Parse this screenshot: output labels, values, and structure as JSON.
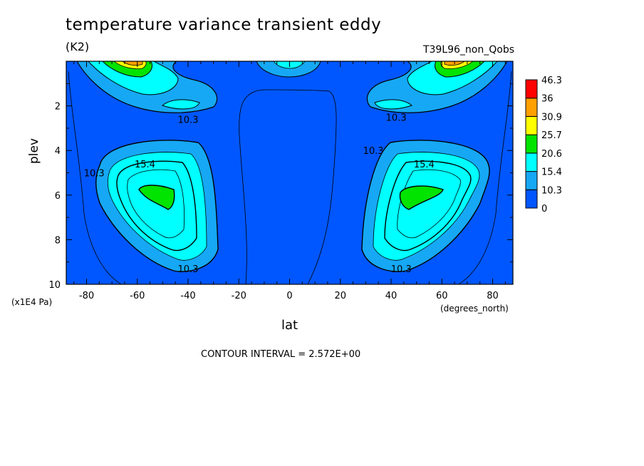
{
  "header": {
    "title": "temperature variance transient eddy",
    "units": "(K2)",
    "experiment": "T39L96_non_Qobs"
  },
  "footer": {
    "contour_interval": "CONTOUR INTERVAL = 2.572E+00"
  },
  "chart_data": {
    "type": "heatmap",
    "title": "temperature variance transient eddy",
    "xlabel": "lat",
    "x_units": "(degrees_north)",
    "ylabel": "plev",
    "y_units": "(x1E4 Pa)",
    "xlim": [
      -88,
      88
    ],
    "ylim": [
      10,
      0
    ],
    "x_ticks": [
      -80,
      -60,
      -40,
      -20,
      0,
      20,
      40,
      60,
      80
    ],
    "x_tick_labels": [
      "-80",
      "-60",
      "-40",
      "-20",
      "0",
      "20",
      "40",
      "60",
      "80"
    ],
    "y_ticks": [
      2,
      4,
      6,
      8,
      10
    ],
    "y_tick_labels": [
      "2",
      "4",
      "6",
      "8",
      "10"
    ],
    "contour_interval": 2.572,
    "colorbar": {
      "levels": [
        0,
        10.3,
        15.4,
        20.6,
        25.7,
        30.9,
        36,
        46.3
      ],
      "labels": [
        "0",
        "10.3",
        "15.4",
        "20.6",
        "25.7",
        "30.9",
        "36",
        "46.3"
      ],
      "colors": [
        "#0057ff",
        "#16a8f5",
        "#00ffff",
        "#00e400",
        "#ffff00",
        "#ff9f00",
        "#ff0000"
      ]
    },
    "contour_labels": [
      {
        "text": "10.3",
        "lat": -40,
        "plev": 2.6
      },
      {
        "text": "10.3",
        "lat": 42,
        "plev": 2.5
      },
      {
        "text": "10.3",
        "lat": -77,
        "plev": 5.0
      },
      {
        "text": "10.3",
        "lat": 33,
        "plev": 4.0
      },
      {
        "text": "15.4",
        "lat": -57,
        "plev": 4.6
      },
      {
        "text": "15.4",
        "lat": 53,
        "plev": 4.6
      },
      {
        "text": "10.3",
        "lat": -40,
        "plev": 9.3
      },
      {
        "text": "10.3",
        "lat": 44,
        "plev": 9.3
      }
    ],
    "features": [
      {
        "name": "southern-midlevel-maximum",
        "lat": -52,
        "plev": 6.0,
        "max_level": 20.6
      },
      {
        "name": "northern-midlevel-maximum",
        "lat": 50,
        "plev": 6.0,
        "max_level": 20.6
      },
      {
        "name": "southern-upper-maximum",
        "lat": -68,
        "plev": 0.1,
        "max_level": 36
      },
      {
        "name": "northern-upper-maximum",
        "lat": 68,
        "plev": 0.1,
        "max_level": 36
      }
    ]
  }
}
